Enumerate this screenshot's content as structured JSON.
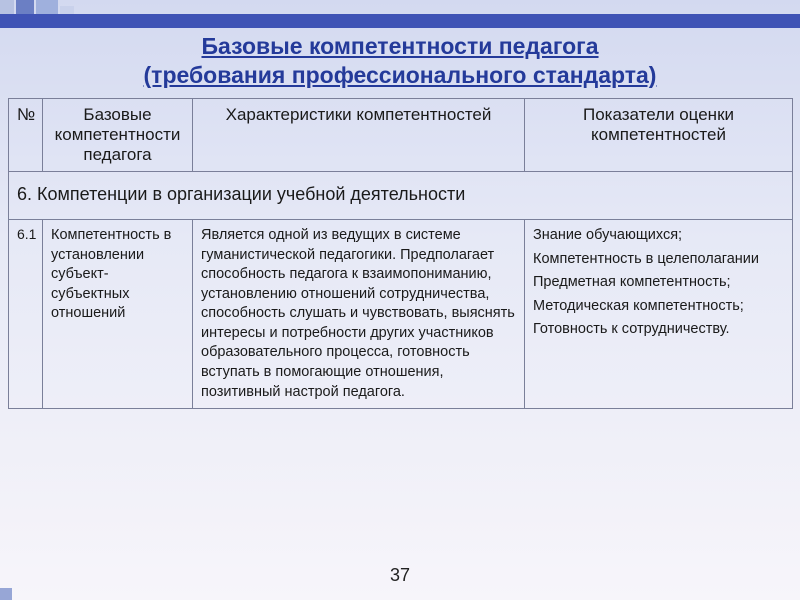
{
  "title_line1": "Базовые компетентности педагога",
  "title_line2": "(требования профессионального стандарта)",
  "columns": {
    "num": "№",
    "base": "Базовые компетентности педагога",
    "char": "Характеристики компетентностей",
    "ind": "Показатели оценки компетентностей"
  },
  "section": {
    "num": "6.",
    "label": "Компетенции в организации учебной деятельности"
  },
  "row": {
    "num": "6.1",
    "base": "Компетентность в установлении субъект-субъектных отношений",
    "char": "Является одной из ведущих в системе гуманистической педагогики. Предполагает способность педагога к взаимопониманию, установлению отношений сотрудничества, способность слушать и чувствовать, выяснять интересы и потребности других участников образовательного процесса, готовность вступать в помогающие отношения, позитивный настрой педагога.",
    "ind": {
      "p1": "Знание обучающихся;",
      "p2": "Компетентность в целеполагании",
      "p3": "Предметная компетентность;",
      "p4": "Методическая компетентность;",
      "p5": "Готовность к сотрудничеству."
    }
  },
  "page_number": "37",
  "colors": {
    "title": "#243a9a",
    "topbar": "#3f53b5",
    "border": "#7a7f99"
  }
}
